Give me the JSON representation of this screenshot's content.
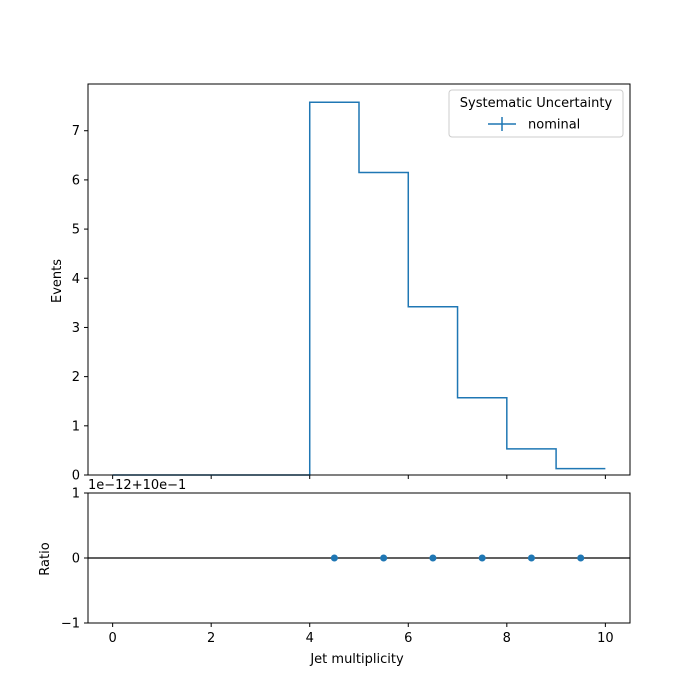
{
  "chart_data": [
    {
      "type": "histogram",
      "panel": "main",
      "ylabel": "Events",
      "bin_edges": [
        0,
        1,
        2,
        3,
        4,
        5,
        6,
        7,
        8,
        9,
        10
      ],
      "series": [
        {
          "name": "nominal",
          "values": [
            0,
            0,
            0,
            0,
            7.58,
            6.15,
            3.42,
            1.57,
            0.53,
            0.13
          ]
        }
      ],
      "xlim": [
        -0.5,
        10.5
      ],
      "ylim": [
        0,
        7.95
      ],
      "yticks": [
        "0",
        "1",
        "2",
        "3",
        "4",
        "5",
        "6",
        "7"
      ],
      "legend": {
        "title": "Systematic Uncertainty",
        "placement": "top-right",
        "entries": [
          "nominal"
        ]
      },
      "color": "#1f77b4"
    },
    {
      "type": "scatter",
      "panel": "ratio",
      "xlabel": "Jet multiplicity",
      "ylabel": "Ratio",
      "offset_label": "1e−12+10e−1",
      "x": [
        4.5,
        5.5,
        6.5,
        7.5,
        8.5,
        9.5
      ],
      "y": [
        0,
        0,
        0,
        0,
        0,
        0
      ],
      "reference_line": 0,
      "xlim": [
        -0.5,
        10.5
      ],
      "ylim": [
        -1,
        1
      ],
      "yticks": [
        "−1",
        "0",
        "1"
      ],
      "xticks": [
        "0",
        "2",
        "4",
        "6",
        "8",
        "10"
      ],
      "color": "#1f77b4"
    }
  ]
}
